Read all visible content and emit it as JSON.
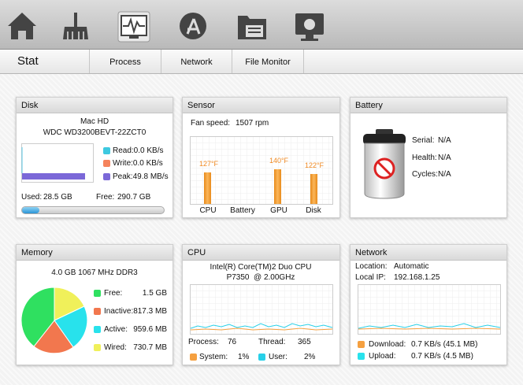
{
  "header": {
    "title": "Stat",
    "tabs": [
      "Process",
      "Network",
      "File Monitor"
    ]
  },
  "disk": {
    "title": "Disk",
    "name": "Mac HD",
    "model": "WDC WD3200BEVT-22ZCT0",
    "legend": [
      "Read:0.0 KB/s",
      "Write:0.0 KB/s",
      "Peak:49.8 MB/s"
    ],
    "used_label": "Used:",
    "used": "28.5 GB",
    "free_label": "Free:",
    "free": "290.7 GB"
  },
  "sensor": {
    "title": "Sensor",
    "fan_label": "Fan speed:",
    "fan": "1507 rpm",
    "sensors": [
      {
        "name": "CPU",
        "reading": "127°F"
      },
      {
        "name": "Battery"
      },
      {
        "name": "GPU",
        "reading": "140°F"
      },
      {
        "name": "Disk",
        "reading": "122°F"
      }
    ]
  },
  "battery": {
    "title": "Battery",
    "rows": [
      [
        "Serial:",
        "N/A"
      ],
      [
        "Health:",
        "N/A"
      ],
      [
        "Cycles:",
        "N/A"
      ]
    ]
  },
  "memory": {
    "title": "Memory",
    "spec": "4.0 GB 1067 MHz DDR3",
    "legend": [
      [
        "Free:",
        "1.5 GB"
      ],
      [
        "Inactive:",
        "817.3 MB"
      ],
      [
        "Active:",
        "959.6 MB"
      ],
      [
        "Wired:",
        "730.7 MB"
      ]
    ]
  },
  "cpu": {
    "title": "CPU",
    "model": "Intel(R) Core(TM)2 Duo CPU",
    "speed": "P7350  @ 2.00GHz",
    "stats": [
      [
        "Process:",
        "76"
      ],
      [
        "Thread:",
        "365"
      ],
      [
        "System:",
        "1%"
      ],
      [
        "User:",
        "2%"
      ]
    ]
  },
  "network": {
    "title": "Network",
    "info": [
      [
        "Location:",
        "Automatic"
      ],
      [
        "Local IP:",
        "192.168.1.25"
      ]
    ],
    "legend": [
      [
        "Download:",
        "0.7 KB/s (45.1 MB)"
      ],
      [
        "Upload:",
        "0.7 KB/s (4.5 MB)"
      ]
    ]
  }
}
